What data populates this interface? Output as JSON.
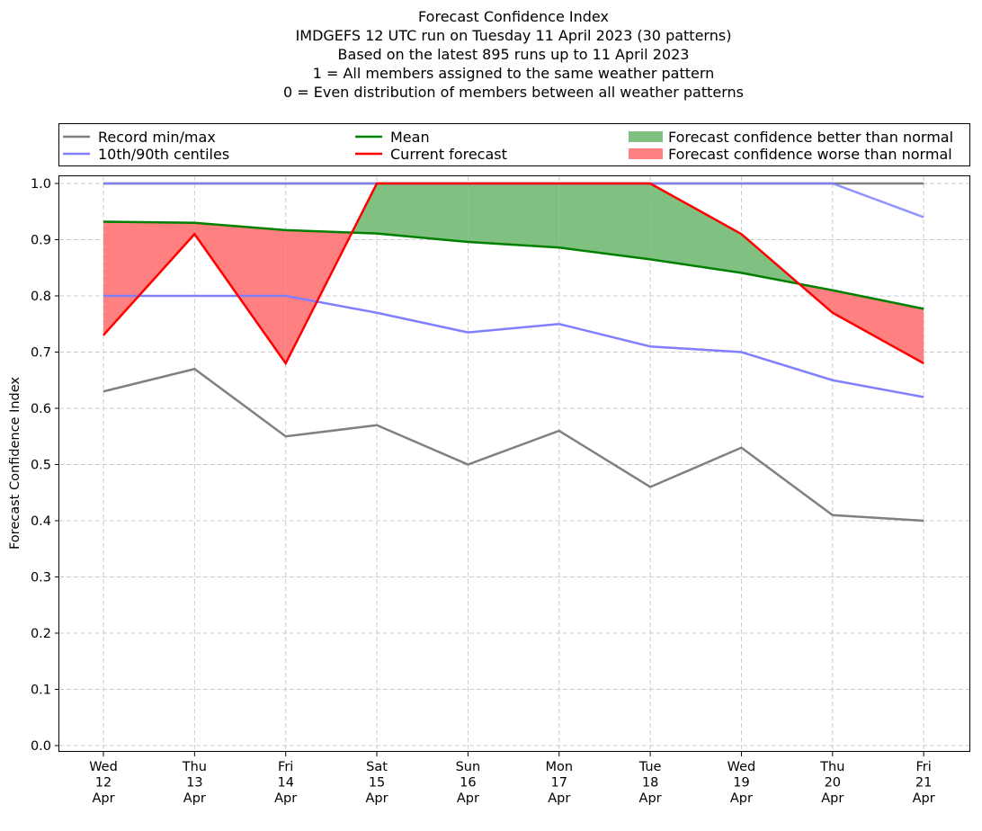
{
  "chart_data": {
    "type": "line",
    "title_lines": [
      "Forecast Confidence Index",
      "IMDGEFS 12 UTC run on Tuesday 11 April 2023 (30 patterns)",
      "Based on the latest 895 runs up to 11 April 2023",
      "1 = All members assigned to the same weather pattern",
      "0 = Even distribution of members between all weather patterns"
    ],
    "xlabel": "",
    "ylabel": "Forecast Confidence Index",
    "ylim": [
      0.0,
      1.0
    ],
    "yticks": [
      "0.0",
      "0.1",
      "0.2",
      "0.3",
      "0.4",
      "0.5",
      "0.6",
      "0.7",
      "0.8",
      "0.9",
      "1.0"
    ],
    "grid": true,
    "legend_placement": "top (above plot, 3 columns)",
    "categories": [
      [
        "Wed",
        "12",
        "Apr"
      ],
      [
        "Thu",
        "13",
        "Apr"
      ],
      [
        "Fri",
        "14",
        "Apr"
      ],
      [
        "Sat",
        "15",
        "Apr"
      ],
      [
        "Sun",
        "16",
        "Apr"
      ],
      [
        "Mon",
        "17",
        "Apr"
      ],
      [
        "Tue",
        "18",
        "Apr"
      ],
      [
        "Wed",
        "19",
        "Apr"
      ],
      [
        "Thu",
        "20",
        "Apr"
      ],
      [
        "Fri",
        "21",
        "Apr"
      ]
    ],
    "series": [
      {
        "name": "Record max",
        "legend": "Record min/max",
        "color": "#808080",
        "values": [
          1.0,
          1.0,
          1.0,
          1.0,
          1.0,
          1.0,
          1.0,
          1.0,
          1.0,
          1.0
        ]
      },
      {
        "name": "Record min",
        "legend": "",
        "color": "#808080",
        "values": [
          0.63,
          0.67,
          0.55,
          0.57,
          0.5,
          0.56,
          0.46,
          0.53,
          0.41,
          0.4
        ]
      },
      {
        "name": "90th centile",
        "legend": "10th/90th centiles",
        "color": "#8080ff",
        "values": [
          1.0,
          1.0,
          1.0,
          1.0,
          1.0,
          1.0,
          1.0,
          1.0,
          1.0,
          0.94
        ]
      },
      {
        "name": "10th centile",
        "legend": "",
        "color": "#8080ff",
        "values": [
          0.8,
          0.8,
          0.8,
          0.77,
          0.735,
          0.75,
          0.71,
          0.7,
          0.65,
          0.62
        ]
      },
      {
        "name": "Mean",
        "legend": "Mean",
        "color": "#008000",
        "values": [
          0.932,
          0.93,
          0.917,
          0.911,
          0.896,
          0.886,
          0.865,
          0.841,
          0.81,
          0.777
        ]
      },
      {
        "name": "Current forecast",
        "legend": "Current forecast",
        "color": "#ff0000",
        "values": [
          0.73,
          0.91,
          0.68,
          1.0,
          1.0,
          1.0,
          1.0,
          0.91,
          0.77,
          0.68
        ]
      }
    ],
    "fills": [
      {
        "name": "better",
        "legend": "Forecast confidence better than normal",
        "color": "#80c080",
        "between": [
          "Current forecast",
          "Mean"
        ],
        "where": "current >= mean"
      },
      {
        "name": "worse",
        "legend": "Forecast confidence worse than normal",
        "color": "#ff8080",
        "between": [
          "Current forecast",
          "Mean"
        ],
        "where": "current < mean"
      }
    ]
  }
}
